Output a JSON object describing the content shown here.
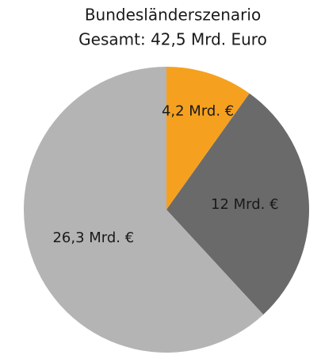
{
  "chart_data": {
    "type": "pie",
    "title": "Bundesländerszenario",
    "subtitle": "Gesamt: 42,5 Mrd. Euro",
    "values": [
      4.2,
      12,
      26.3
    ],
    "value_labels": [
      "4,2 Mrd. €",
      "12 Mrd. €",
      "26,3 Mrd. €"
    ],
    "colors": [
      "#f5a11f",
      "#6a6a6a",
      "#b4b4b4"
    ]
  }
}
